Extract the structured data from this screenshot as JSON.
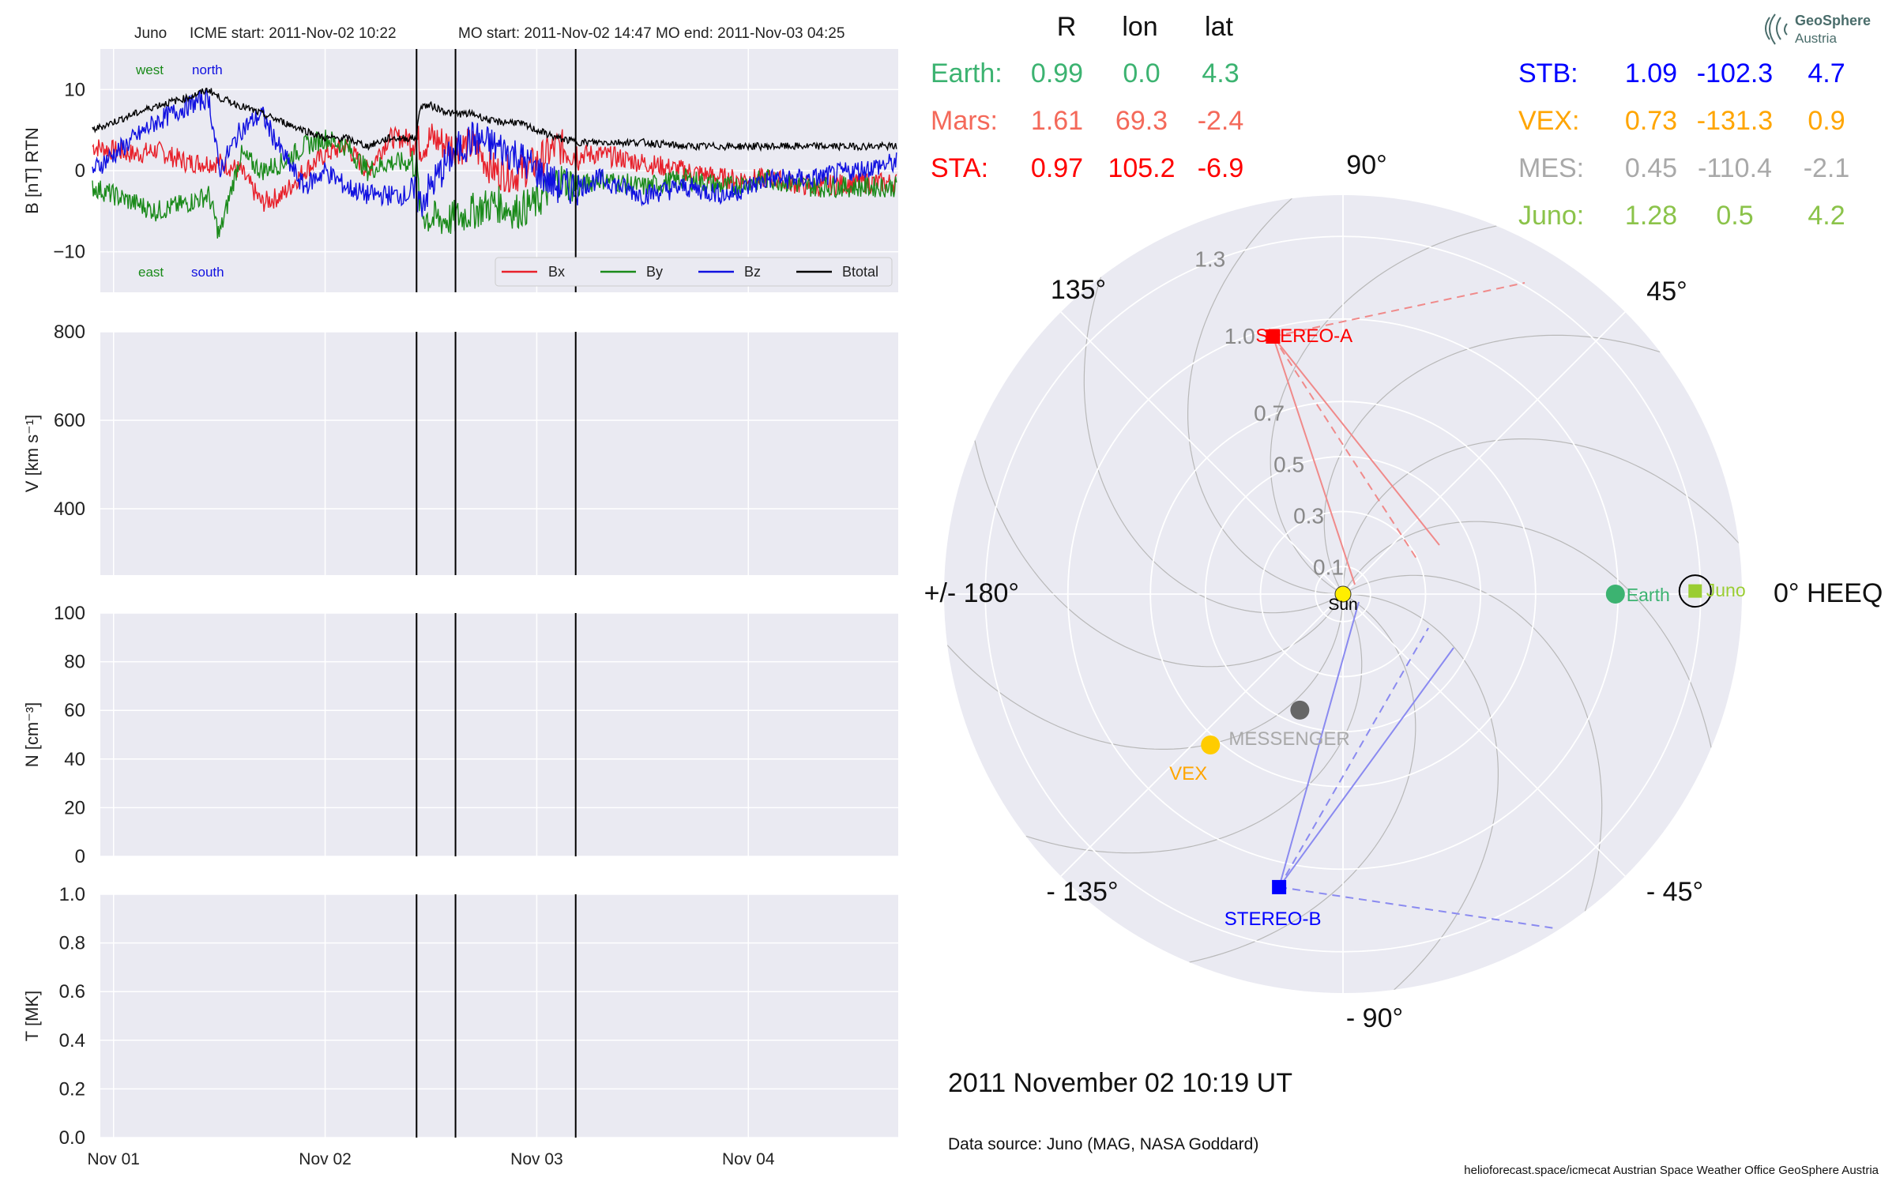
{
  "header": {
    "spacecraft": "Juno",
    "icme_start": "ICME start: 2011-Nov-02 10:22",
    "mo_start": "MO start: 2011-Nov-02 14:47",
    "mo_end": "MO end: 2011-Nov-03 04:25"
  },
  "timeseries": {
    "date_ticks": [
      "Nov 01",
      "Nov 02",
      "Nov 03",
      "Nov 04"
    ],
    "date_tick_values": [
      "2011-11-01T00:00",
      "2011-11-02T00:00",
      "2011-11-03T00:00",
      "2011-11-04T00:00"
    ],
    "x_range": [
      "2011-10-31T22:30",
      "2011-11-04T17:00"
    ],
    "event_lines": [
      "2011-11-02T10:22",
      "2011-11-02T14:47",
      "2011-11-03T04:25"
    ],
    "b_panel": {
      "ylabel": "B [nT] RTN",
      "ylim": [
        -15,
        15
      ],
      "yticks": [
        10,
        0,
        -10
      ],
      "ytick_labels": [
        "10",
        "0",
        "−10"
      ],
      "top_labels": [
        "west",
        "north"
      ],
      "bottom_labels": [
        "east",
        "south"
      ],
      "legend": [
        "Bx",
        "By",
        "Bz",
        "Btotal"
      ]
    },
    "v_panel": {
      "ylabel": "V [km s⁻¹]",
      "ylim": [
        250,
        800
      ],
      "yticks": [
        800,
        600,
        400
      ],
      "ytick_labels": [
        "800",
        "600",
        "400"
      ]
    },
    "n_panel": {
      "ylabel": "N [cm⁻³]",
      "ylim": [
        0,
        100
      ],
      "yticks": [
        100,
        80,
        60,
        40,
        20,
        0
      ],
      "ytick_labels": [
        "100",
        "80",
        "60",
        "40",
        "20",
        "0"
      ]
    },
    "t_panel": {
      "ylabel": "T [MK]",
      "ylim": [
        0,
        1
      ],
      "yticks": [
        1,
        0.8,
        0.6,
        0.4,
        0.2,
        0
      ],
      "ytick_labels": [
        "1.0",
        "0.8",
        "0.6",
        "0.4",
        "0.2",
        "0.0"
      ]
    }
  },
  "chart_data": [
    {
      "type": "line",
      "title": "Juno",
      "ylabel": "B [nT] RTN",
      "ylim": [
        -15,
        15
      ],
      "x_unit": "days since 2011-11-01 00:00",
      "series": [
        {
          "name": "Bx",
          "color": "#e8202a",
          "x": [
            -0.1,
            0.1,
            0.2,
            0.35,
            0.5,
            0.6,
            0.7,
            0.8,
            0.9,
            1.0,
            1.1,
            1.2,
            1.3,
            1.43,
            1.45,
            1.5,
            1.6,
            1.7,
            1.8,
            1.9,
            2.0,
            2.1,
            2.2,
            2.3,
            2.5,
            2.7,
            2.9,
            3.1,
            3.3,
            3.5,
            3.7
          ],
          "y": [
            3,
            2,
            2.5,
            1,
            1,
            0,
            -4,
            -3,
            0,
            2,
            3,
            0,
            4,
            4,
            3,
            4,
            3,
            3,
            0,
            -0.5,
            1,
            3,
            2,
            2,
            1,
            0,
            -1,
            -1,
            -2,
            -1.5,
            -1.5
          ]
        },
        {
          "name": "By",
          "color": "#1a8a1a",
          "x": [
            -0.1,
            0.1,
            0.2,
            0.35,
            0.45,
            0.5,
            0.6,
            0.7,
            0.8,
            0.9,
            1.0,
            1.1,
            1.2,
            1.3,
            1.43,
            1.45,
            1.5,
            1.6,
            1.7,
            1.8,
            1.9,
            2.0,
            2.1,
            2.2,
            2.3,
            2.5,
            2.7,
            2.9,
            3.1,
            3.3,
            3.5,
            3.7
          ],
          "y": [
            -2,
            -4,
            -5,
            -4,
            -3,
            -8,
            2,
            0,
            1,
            3,
            4,
            3,
            0,
            1,
            1,
            -5,
            -6,
            -6,
            -5,
            -4,
            -5,
            -4,
            -1,
            -2,
            -1,
            -2,
            -1,
            -2,
            -1,
            -2,
            -2,
            -2
          ]
        },
        {
          "name": "Bz",
          "color": "#1010e0",
          "x": [
            -0.1,
            0.1,
            0.2,
            0.35,
            0.45,
            0.5,
            0.6,
            0.7,
            0.8,
            0.9,
            1.0,
            1.1,
            1.2,
            1.3,
            1.43,
            1.45,
            1.5,
            1.6,
            1.7,
            1.8,
            1.9,
            2.0,
            2.1,
            2.2,
            2.3,
            2.5,
            2.7,
            2.9,
            3.1,
            3.3,
            3.5,
            3.7
          ],
          "y": [
            0,
            4,
            6,
            8,
            9,
            0,
            5,
            7,
            2,
            -2,
            0,
            -2,
            -3,
            -3,
            -3,
            -4,
            -2,
            2,
            4,
            3,
            2,
            0,
            -2,
            -2,
            -1,
            -3,
            -2,
            -3,
            -1,
            -1,
            0,
            1
          ]
        },
        {
          "name": "Btotal",
          "color": "#000000",
          "x": [
            -0.1,
            0.1,
            0.2,
            0.35,
            0.45,
            0.5,
            0.6,
            0.7,
            0.8,
            0.9,
            1.0,
            1.1,
            1.2,
            1.3,
            1.43,
            1.45,
            1.5,
            1.6,
            1.7,
            1.8,
            1.9,
            2.0,
            2.1,
            2.2,
            2.3,
            2.5,
            2.7,
            2.9,
            3.1,
            3.3,
            3.5,
            3.7
          ],
          "y": [
            5,
            7,
            8,
            9,
            10,
            9,
            8,
            7,
            6,
            5,
            4,
            4,
            3,
            4,
            4,
            8,
            8,
            7,
            7,
            6,
            6,
            5,
            4,
            3.5,
            3.5,
            3.5,
            3,
            3,
            3,
            3,
            3,
            3
          ]
        }
      ]
    },
    {
      "type": "line",
      "ylabel": "V [km s⁻¹]",
      "ylim": [
        250,
        800
      ],
      "series": []
    },
    {
      "type": "line",
      "ylabel": "N [cm⁻³]",
      "ylim": [
        0,
        100
      ],
      "series": []
    },
    {
      "type": "line",
      "ylabel": "T [MK]",
      "ylim": [
        0,
        1
      ],
      "series": []
    },
    {
      "type": "scatter",
      "subtype": "polar",
      "theta_labels": [
        "90°",
        "45°",
        "0° HEEQ",
        "- 45°",
        "- 90°",
        "- 135°",
        "+/- 180°",
        "135°"
      ],
      "r_labels": [
        "0.1",
        "0.3",
        "0.5",
        "0.7",
        "1.0",
        "1.3"
      ],
      "r_values": [
        0.1,
        0.3,
        0.5,
        0.7,
        1.0,
        1.3
      ],
      "rlim": [
        0,
        1.45
      ],
      "objects": [
        {
          "label": "Sun",
          "r": 0,
          "lon": 0,
          "color": "#ffee00",
          "marker": "circle"
        },
        {
          "label": "Earth",
          "r": 0.99,
          "lon": 0.0,
          "color": "#3cb371",
          "marker": "circle"
        },
        {
          "label": "Juno",
          "r": 1.28,
          "lon": 0.5,
          "color": "#9acd32",
          "marker": "square"
        },
        {
          "label": "STEREO-A",
          "r": 0.97,
          "lon": 105.2,
          "color": "#ff0000",
          "marker": "square"
        },
        {
          "label": "STEREO-B",
          "r": 1.09,
          "lon": -102.3,
          "color": "#0000ff",
          "marker": "square"
        },
        {
          "label": "VEX",
          "r": 0.73,
          "lon": -131.3,
          "color": "#ffcc00",
          "marker": "circle"
        },
        {
          "label": "MESSENGER",
          "r": 0.45,
          "lon": -110.4,
          "color": "#666666",
          "marker": "circle"
        }
      ]
    }
  ],
  "positions_table": {
    "headers": [
      "R",
      "lon",
      "lat"
    ],
    "rows_left": [
      {
        "name": "Earth:",
        "R": "0.99",
        "lon": "0.0",
        "lat": "4.3",
        "color": "#3cb371"
      },
      {
        "name": "Mars:",
        "R": "1.61",
        "lon": "69.3",
        "lat": "-2.4",
        "color": "#f4695a"
      },
      {
        "name": "STA:",
        "R": "0.97",
        "lon": "105.2",
        "lat": "-6.9",
        "color": "#ff0000"
      }
    ],
    "rows_right": [
      {
        "name": "STB:",
        "R": "1.09",
        "lon": "-102.3",
        "lat": "4.7",
        "color": "#0000ff"
      },
      {
        "name": "VEX:",
        "R": "0.73",
        "lon": "-131.3",
        "lat": "0.9",
        "color": "#ffa500"
      },
      {
        "name": "MES:",
        "R": "0.45",
        "lon": "-110.4",
        "lat": "-2.1",
        "color": "#a9a9a9"
      },
      {
        "name": "Juno:",
        "R": "1.28",
        "lon": "0.5",
        "lat": "4.2",
        "color": "#8bc34a"
      }
    ]
  },
  "logo": {
    "line1": "GeoSphere",
    "line2": "Austria"
  },
  "footer": {
    "timestamp": "2011 November 02  10:19 UT",
    "data_source": "Data source: Juno (MAG, NASA Goddard)",
    "credits": "helioforecast.space/icmecat   Austrian Space Weather Office   GeoSphere Austria"
  }
}
